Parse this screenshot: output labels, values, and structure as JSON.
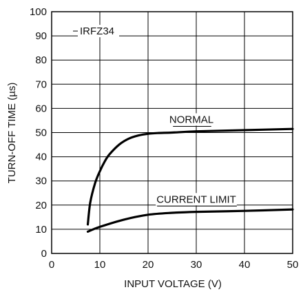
{
  "chart_data": {
    "type": "line",
    "title": "",
    "xlabel": "INPUT VOLTAGE (V)",
    "ylabel": "TURN-OFF TIME (µs)",
    "xlim": [
      0,
      50
    ],
    "ylim": [
      0,
      100
    ],
    "xticks": [
      0,
      10,
      20,
      30,
      40,
      50
    ],
    "yticks": [
      0,
      10,
      20,
      30,
      40,
      50,
      60,
      70,
      80,
      90,
      100
    ],
    "grid": true,
    "annotations": [
      {
        "text": "IRFZ34",
        "x": 7,
        "y": 92
      }
    ],
    "series": [
      {
        "name": "NORMAL",
        "x": [
          7.5,
          8,
          9,
          10,
          11,
          12,
          14,
          16,
          18,
          20,
          22,
          25,
          30,
          40,
          50
        ],
        "y": [
          12,
          21,
          29,
          34,
          38,
          41,
          45,
          47.5,
          48.8,
          49.5,
          49.8,
          50,
          50.5,
          51,
          51.5
        ]
      },
      {
        "name": "CURRENT LIMIT",
        "x": [
          7.5,
          10,
          15,
          20,
          25,
          30,
          40,
          50
        ],
        "y": [
          9,
          11,
          14,
          16,
          16.8,
          17.2,
          17.6,
          18.2
        ]
      }
    ],
    "series_label_positions": [
      {
        "text": "NORMAL",
        "x": 29,
        "y": 54
      },
      {
        "text": "CURRENT LIMIT",
        "x": 30,
        "y": 21
      }
    ],
    "line_color": "#000000",
    "grid_color": "#000000"
  }
}
